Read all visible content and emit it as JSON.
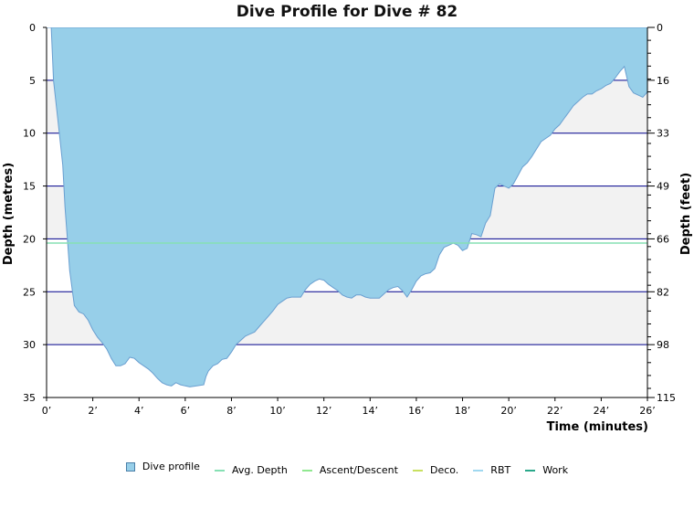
{
  "chart_data": {
    "type": "area",
    "title": "Dive Profile for Dive # 82",
    "xlabel": "Time (minutes)",
    "ylabel_left": "Depth (metres)",
    "ylabel_right": "Depth (feet)",
    "xlim": [
      0,
      26
    ],
    "ylim": [
      0,
      35
    ],
    "y_inverted": true,
    "x_ticks": [
      "0’",
      "2’",
      "4’",
      "6’",
      "8’",
      "10’",
      "12’",
      "14’",
      "16’",
      "18’",
      "20’",
      "22’",
      "24’",
      "26’"
    ],
    "y_ticks_left": [
      "0",
      "5",
      "10",
      "15",
      "20",
      "25",
      "30",
      "35"
    ],
    "y_ticks_right": [
      "0",
      "16",
      "33",
      "49",
      "66",
      "82",
      "98",
      "115"
    ],
    "grid": true,
    "legend_position": "bottom",
    "colors": {
      "profile_fill": "#97cfe9",
      "profile_stroke": "#6a9fd0",
      "band": "#f2f2f2",
      "grid": "#00008b",
      "avg_depth": "#86e0b4",
      "ascent": "#90e890",
      "deco": "#c8e060",
      "rbt": "#a0d8f0",
      "work": "#2aa88a"
    },
    "avg_depth": 20.4,
    "series": [
      {
        "name": "Dive profile",
        "points": [
          [
            0,
            0
          ],
          [
            0.2,
            0
          ],
          [
            0.3,
            5
          ],
          [
            0.5,
            9
          ],
          [
            0.7,
            13
          ],
          [
            0.8,
            17
          ],
          [
            0.9,
            20
          ],
          [
            1.0,
            23
          ],
          [
            1.2,
            26.3
          ],
          [
            1.4,
            26.9
          ],
          [
            1.6,
            27.1
          ],
          [
            1.8,
            27.7
          ],
          [
            2.0,
            28.6
          ],
          [
            2.2,
            29.3
          ],
          [
            2.4,
            29.8
          ],
          [
            2.6,
            30.4
          ],
          [
            2.8,
            31.3
          ],
          [
            3.0,
            32.0
          ],
          [
            3.2,
            32.0
          ],
          [
            3.4,
            31.8
          ],
          [
            3.6,
            31.2
          ],
          [
            3.8,
            31.3
          ],
          [
            4.0,
            31.7
          ],
          [
            4.2,
            32.0
          ],
          [
            4.4,
            32.3
          ],
          [
            4.6,
            32.7
          ],
          [
            4.8,
            33.2
          ],
          [
            5.0,
            33.6
          ],
          [
            5.2,
            33.8
          ],
          [
            5.4,
            33.9
          ],
          [
            5.6,
            33.6
          ],
          [
            5.8,
            33.8
          ],
          [
            6.0,
            33.9
          ],
          [
            6.2,
            34.0
          ],
          [
            6.5,
            33.9
          ],
          [
            6.8,
            33.8
          ],
          [
            6.9,
            33.0
          ],
          [
            7.0,
            32.5
          ],
          [
            7.2,
            32.0
          ],
          [
            7.4,
            31.8
          ],
          [
            7.6,
            31.4
          ],
          [
            7.8,
            31.3
          ],
          [
            8.0,
            30.7
          ],
          [
            8.2,
            30.0
          ],
          [
            8.4,
            29.6
          ],
          [
            8.6,
            29.2
          ],
          [
            8.8,
            29.0
          ],
          [
            9.0,
            28.8
          ],
          [
            9.2,
            28.3
          ],
          [
            9.4,
            27.8
          ],
          [
            9.6,
            27.3
          ],
          [
            9.8,
            26.8
          ],
          [
            10.0,
            26.2
          ],
          [
            10.2,
            25.9
          ],
          [
            10.4,
            25.6
          ],
          [
            10.6,
            25.5
          ],
          [
            10.8,
            25.5
          ],
          [
            11.0,
            25.5
          ],
          [
            11.2,
            24.8
          ],
          [
            11.4,
            24.3
          ],
          [
            11.6,
            24.0
          ],
          [
            11.8,
            23.8
          ],
          [
            12.0,
            23.9
          ],
          [
            12.2,
            24.3
          ],
          [
            12.4,
            24.6
          ],
          [
            12.6,
            24.9
          ],
          [
            12.8,
            25.3
          ],
          [
            13.0,
            25.5
          ],
          [
            13.2,
            25.6
          ],
          [
            13.4,
            25.3
          ],
          [
            13.6,
            25.3
          ],
          [
            13.8,
            25.5
          ],
          [
            14.0,
            25.6
          ],
          [
            14.2,
            25.6
          ],
          [
            14.4,
            25.6
          ],
          [
            14.6,
            25.2
          ],
          [
            14.8,
            24.8
          ],
          [
            15.0,
            24.6
          ],
          [
            15.2,
            24.5
          ],
          [
            15.4,
            24.9
          ],
          [
            15.6,
            25.5
          ],
          [
            15.8,
            24.8
          ],
          [
            16.0,
            24.0
          ],
          [
            16.2,
            23.5
          ],
          [
            16.4,
            23.3
          ],
          [
            16.6,
            23.2
          ],
          [
            16.8,
            22.8
          ],
          [
            17.0,
            21.5
          ],
          [
            17.2,
            20.8
          ],
          [
            17.4,
            20.6
          ],
          [
            17.6,
            20.4
          ],
          [
            17.8,
            20.6
          ],
          [
            18.0,
            21.1
          ],
          [
            18.2,
            20.9
          ],
          [
            18.4,
            19.5
          ],
          [
            18.6,
            19.6
          ],
          [
            18.8,
            19.8
          ],
          [
            19.0,
            18.5
          ],
          [
            19.2,
            17.8
          ],
          [
            19.4,
            15.2
          ],
          [
            19.6,
            14.8
          ],
          [
            19.8,
            15.0
          ],
          [
            20.0,
            15.2
          ],
          [
            20.2,
            14.8
          ],
          [
            20.4,
            14.0
          ],
          [
            20.6,
            13.2
          ],
          [
            20.8,
            12.8
          ],
          [
            21.0,
            12.2
          ],
          [
            21.2,
            11.5
          ],
          [
            21.4,
            10.8
          ],
          [
            21.6,
            10.5
          ],
          [
            21.8,
            10.2
          ],
          [
            22.0,
            9.6
          ],
          [
            22.2,
            9.2
          ],
          [
            22.4,
            8.6
          ],
          [
            22.6,
            8.0
          ],
          [
            22.8,
            7.4
          ],
          [
            23.0,
            7.0
          ],
          [
            23.2,
            6.6
          ],
          [
            23.4,
            6.3
          ],
          [
            23.6,
            6.3
          ],
          [
            23.8,
            6.0
          ],
          [
            24.0,
            5.8
          ],
          [
            24.2,
            5.5
          ],
          [
            24.4,
            5.3
          ],
          [
            24.6,
            4.8
          ],
          [
            24.8,
            4.2
          ],
          [
            25.0,
            3.7
          ],
          [
            25.2,
            5.6
          ],
          [
            25.4,
            6.2
          ],
          [
            25.6,
            6.4
          ],
          [
            25.8,
            6.6
          ],
          [
            26.0,
            6.1
          ],
          [
            26.2,
            5.6
          ],
          [
            26.4,
            5.1
          ],
          [
            26.6,
            4.0
          ],
          [
            26.8,
            2.0
          ],
          [
            27.0,
            0
          ]
        ]
      }
    ],
    "legend_entries": [
      {
        "label": "Dive profile",
        "color": "#97cfe9",
        "kind": "box"
      },
      {
        "label": "Avg. Depth",
        "color": "#86e0b4",
        "kind": "line"
      },
      {
        "label": "Ascent/Descent",
        "color": "#90e890",
        "kind": "line"
      },
      {
        "label": "Deco.",
        "color": "#c8e060",
        "kind": "line"
      },
      {
        "label": "RBT",
        "color": "#a0d8f0",
        "kind": "line"
      },
      {
        "label": "Work",
        "color": "#2aa88a",
        "kind": "line"
      }
    ]
  }
}
